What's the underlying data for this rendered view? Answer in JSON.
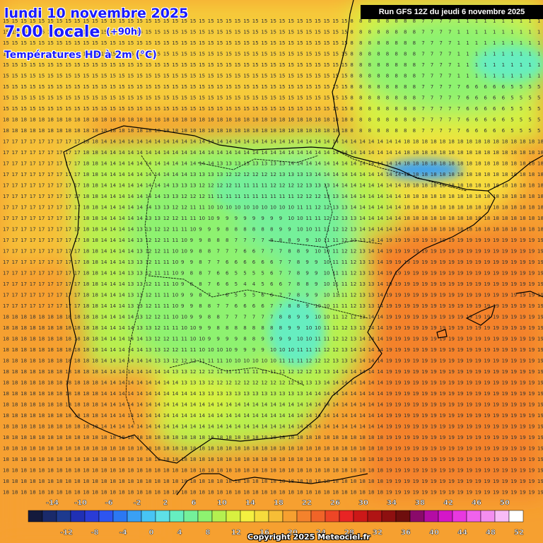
{
  "header": {
    "date_line": "lundi 10 novembre 2025",
    "time_line": "7:00 locale",
    "lead_time": "(+90h)",
    "product": "Températures HD à 2m (°C)"
  },
  "run_info": "Run GFS 12Z du jeudi 6 novembre 2025",
  "copyright": "Copyright 2025 Meteociel.fr",
  "colors": {
    "land_border": "#000000",
    "title_text": "#1a1aff",
    "grid_number": "#333333"
  },
  "legend": {
    "top_labels": [
      "-14",
      "-10",
      "-6",
      "-2",
      "2",
      "6",
      "10",
      "14",
      "18",
      "22",
      "26",
      "30",
      "34",
      "38",
      "42",
      "46",
      "50"
    ],
    "bottom_labels": [
      "-12",
      "-8",
      "-4",
      "0",
      "4",
      "8",
      "12",
      "16",
      "20",
      "24",
      "28",
      "32",
      "36",
      "40",
      "44",
      "48",
      "52"
    ],
    "scale": [
      {
        "v": -16,
        "c": "#141a3c"
      },
      {
        "v": -14,
        "c": "#1a2a6a"
      },
      {
        "v": -12,
        "c": "#1e3a8e"
      },
      {
        "v": -10,
        "c": "#2030b4"
      },
      {
        "v": -8,
        "c": "#2a3cd6"
      },
      {
        "v": -6,
        "c": "#2d55f0"
      },
      {
        "v": -4,
        "c": "#2c78f2"
      },
      {
        "v": -2,
        "c": "#3aa0f4"
      },
      {
        "v": 0,
        "c": "#48c4f4"
      },
      {
        "v": 2,
        "c": "#5ee0e6"
      },
      {
        "v": 4,
        "c": "#66eec0"
      },
      {
        "v": 6,
        "c": "#74f09a"
      },
      {
        "v": 8,
        "c": "#8ef270"
      },
      {
        "v": 10,
        "c": "#b4f050"
      },
      {
        "v": 12,
        "c": "#d8f040"
      },
      {
        "v": 14,
        "c": "#f4f040"
      },
      {
        "v": 16,
        "c": "#f6dc3c"
      },
      {
        "v": 18,
        "c": "#f6be36"
      },
      {
        "v": 20,
        "c": "#f6a030"
      },
      {
        "v": 22,
        "c": "#f4822c"
      },
      {
        "v": 24,
        "c": "#f06428"
      },
      {
        "v": 26,
        "c": "#ee4626"
      },
      {
        "v": 28,
        "c": "#e82424"
      },
      {
        "v": 30,
        "c": "#cc1818"
      },
      {
        "v": 32,
        "c": "#b01414"
      },
      {
        "v": 34,
        "c": "#8e1010"
      },
      {
        "v": 36,
        "c": "#6e0e0e"
      },
      {
        "v": 38,
        "c": "#8a0a6a"
      },
      {
        "v": 40,
        "c": "#b40ca4"
      },
      {
        "v": 42,
        "c": "#d416c8"
      },
      {
        "v": 44,
        "c": "#e838e0"
      },
      {
        "v": 46,
        "c": "#f062ec"
      },
      {
        "v": 48,
        "c": "#f48ef0"
      },
      {
        "v": 50,
        "c": "#f8bcf6"
      },
      {
        "v": 52,
        "c": "#ffffff"
      }
    ]
  }
}
